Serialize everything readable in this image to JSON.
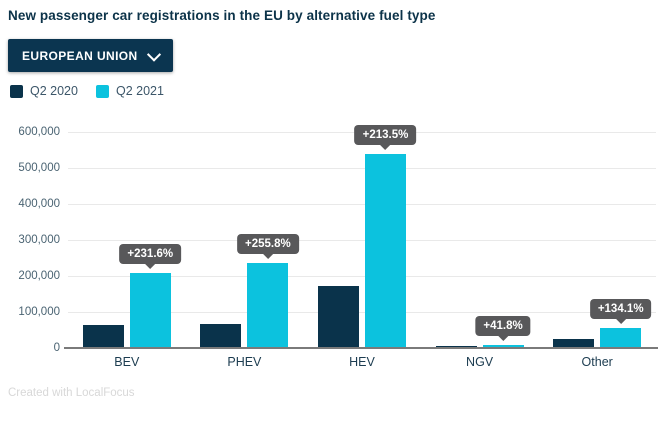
{
  "title": "New passenger car registrations in the EU by alternative fuel type",
  "region_selector": {
    "label": "EUROPEAN UNION",
    "icon": "chevron-down-icon"
  },
  "footer": "Created with LocalFocus",
  "colors": {
    "q2_2020": "#0a334b",
    "q2_2021": "#0cc2de",
    "tooltip_bg": "#58585a",
    "gridline": "#e9e9e9",
    "axis": "#7a7a7a"
  },
  "chart_data": {
    "type": "bar",
    "title": "New passenger car registrations in the EU by alternative fuel type",
    "categories": [
      "BEV",
      "PHEV",
      "HEV",
      "NGV",
      "Other"
    ],
    "series": [
      {
        "name": "Q2 2020",
        "color": "#0a334b",
        "values": [
          63000,
          66000,
          172000,
          6600,
          24000
        ]
      },
      {
        "name": "Q2 2021",
        "color": "#0cc2de",
        "values": [
          209000,
          235000,
          540000,
          9400,
          56200
        ]
      }
    ],
    "annotations": [
      "+231.6%",
      "+255.8%",
      "+213.5%",
      "+41.8%",
      "+134.1%"
    ],
    "annotation_target": "Q2 2021",
    "xlabel": "",
    "ylabel": "",
    "ylim": [
      0,
      600000
    ],
    "ytick_interval": 100000,
    "ytick_labels": [
      "0",
      "100,000",
      "200,000",
      "300,000",
      "400,000",
      "500,000",
      "600,000"
    ],
    "grid": true,
    "legend_position": "top-left"
  }
}
